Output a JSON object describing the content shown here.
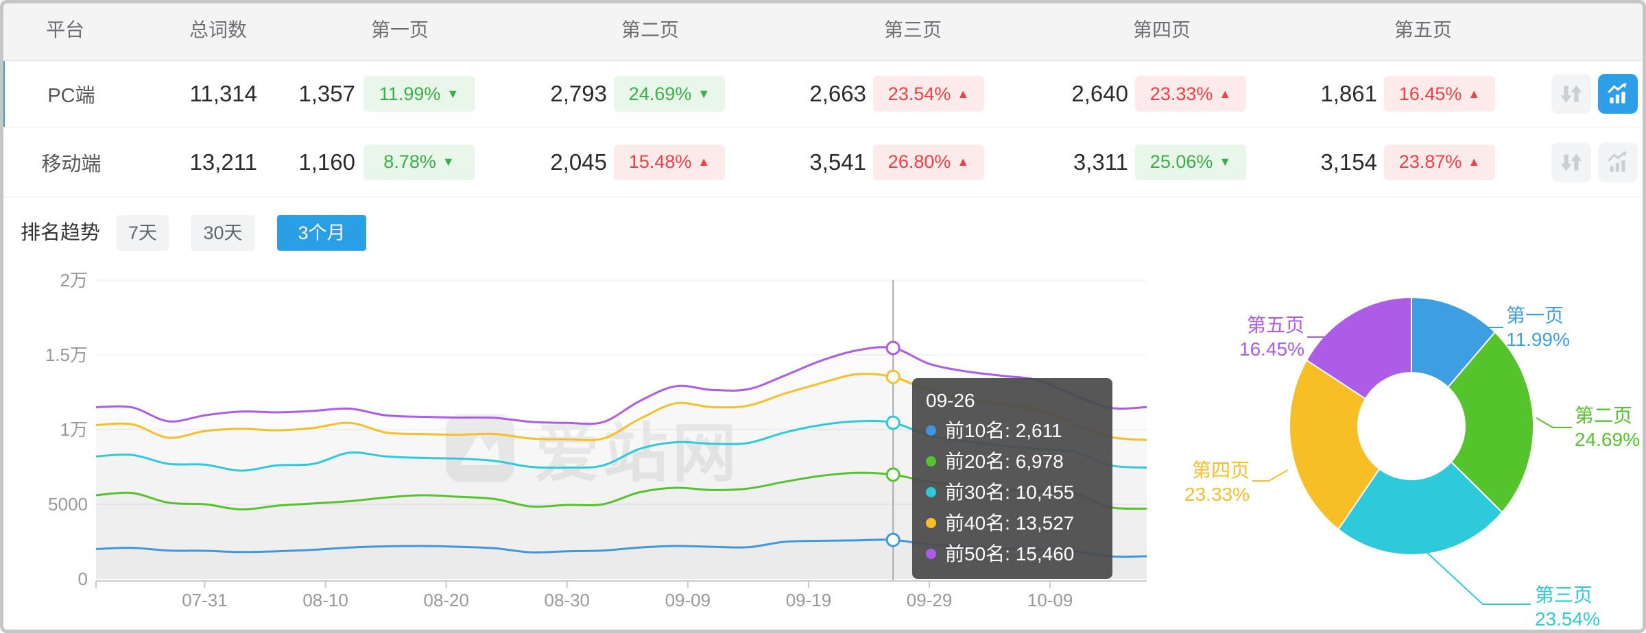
{
  "table": {
    "headers": [
      "平台",
      "总词数",
      "第一页",
      "第二页",
      "第三页",
      "第四页",
      "第五页"
    ],
    "rows": [
      {
        "platform": "PC端",
        "total": "11,314",
        "active": true,
        "pages": [
          {
            "count": "1,357",
            "pct": "11.99%",
            "dir": "down"
          },
          {
            "count": "2,793",
            "pct": "24.69%",
            "dir": "down"
          },
          {
            "count": "2,663",
            "pct": "23.54%",
            "dir": "up"
          },
          {
            "count": "2,640",
            "pct": "23.33%",
            "dir": "up"
          },
          {
            "count": "1,861",
            "pct": "16.45%",
            "dir": "up"
          }
        ]
      },
      {
        "platform": "移动端",
        "total": "13,211",
        "active": false,
        "pages": [
          {
            "count": "1,160",
            "pct": "8.78%",
            "dir": "down"
          },
          {
            "count": "2,045",
            "pct": "15.48%",
            "dir": "up"
          },
          {
            "count": "3,541",
            "pct": "26.80%",
            "dir": "up"
          },
          {
            "count": "3,311",
            "pct": "25.06%",
            "dir": "down"
          },
          {
            "count": "3,154",
            "pct": "23.87%",
            "dir": "up"
          }
        ]
      }
    ]
  },
  "trend": {
    "title": "排名趋势",
    "tabs": [
      {
        "label": "7天",
        "active": false
      },
      {
        "label": "30天",
        "active": false
      },
      {
        "label": "3个月",
        "active": true
      }
    ]
  },
  "watermark": "爱站网",
  "tooltip": {
    "title": "09-26",
    "rows": [
      {
        "name": "前10名",
        "value": "2,611",
        "color": "#3d97e2"
      },
      {
        "name": "前20名",
        "value": "6,978",
        "color": "#54c32c"
      },
      {
        "name": "前30名",
        "value": "10,455",
        "color": "#2ec9db"
      },
      {
        "name": "前40名",
        "value": "13,527",
        "color": "#f8be26"
      },
      {
        "name": "前50名",
        "value": "15,460",
        "color": "#ac5ce6"
      }
    ]
  },
  "chart_data": [
    {
      "type": "line",
      "title": "排名趋势 3个月",
      "x": [
        "07-22",
        "07-25",
        "07-28",
        "07-31",
        "08-03",
        "08-06",
        "08-09",
        "08-12",
        "08-15",
        "08-18",
        "08-21",
        "08-24",
        "08-27",
        "08-30",
        "09-02",
        "09-05",
        "09-08",
        "09-11",
        "09-14",
        "09-17",
        "09-20",
        "09-23",
        "09-26",
        "09-29",
        "10-02",
        "10-05",
        "10-08",
        "10-11",
        "10-14",
        "10-17"
      ],
      "xticks": [
        "07-31",
        "08-10",
        "08-20",
        "08-30",
        "09-09",
        "09-19",
        "09-29",
        "10-09"
      ],
      "ylabels": [
        "0",
        "5000",
        "1万",
        "1.5万",
        "2万"
      ],
      "ylim": [
        0,
        20000
      ],
      "grid": true,
      "marker_date": "09-26",
      "series": [
        {
          "name": "前10名",
          "color": "#3d97e2",
          "values": [
            2000,
            2080,
            1900,
            1880,
            1800,
            1850,
            1950,
            2100,
            2180,
            2200,
            2150,
            2050,
            1780,
            1850,
            1900,
            2100,
            2200,
            2150,
            2120,
            2480,
            2550,
            2580,
            2611,
            2300,
            2150,
            2050,
            1950,
            1850,
            1500,
            1520
          ]
        },
        {
          "name": "前20名",
          "color": "#54c32c",
          "values": [
            5600,
            5750,
            5100,
            5000,
            4650,
            4900,
            5050,
            5200,
            5450,
            5600,
            5500,
            5350,
            4850,
            4950,
            5000,
            5800,
            6100,
            5950,
            6050,
            6500,
            6900,
            7100,
            6978,
            6500,
            6200,
            6000,
            5900,
            5700,
            4800,
            4700
          ]
        },
        {
          "name": "前30名",
          "color": "#2ec9db",
          "values": [
            8200,
            8300,
            7700,
            7650,
            7250,
            7600,
            7700,
            8450,
            8200,
            8100,
            8050,
            7900,
            7500,
            7450,
            7600,
            8700,
            9150,
            9050,
            9100,
            9800,
            10300,
            10550,
            10455,
            9600,
            9200,
            8900,
            8700,
            8500,
            7600,
            7450
          ]
        },
        {
          "name": "前40名",
          "color": "#f8be26",
          "values": [
            10300,
            10350,
            9450,
            9900,
            10050,
            9950,
            10100,
            10450,
            9800,
            9700,
            9650,
            9700,
            9400,
            9350,
            9400,
            10700,
            11750,
            11500,
            11600,
            12400,
            13100,
            13700,
            13527,
            12600,
            12100,
            11700,
            11300,
            10400,
            9500,
            9300
          ]
        },
        {
          "name": "前50名",
          "color": "#ac5ce6",
          "values": [
            11500,
            11480,
            10550,
            10950,
            11200,
            11150,
            11250,
            11400,
            10950,
            10850,
            10800,
            10780,
            10520,
            10450,
            10500,
            11900,
            12900,
            12650,
            12700,
            13600,
            14600,
            15300,
            15460,
            14400,
            13900,
            13600,
            13300,
            12300,
            11450,
            11500
          ]
        }
      ]
    },
    {
      "type": "pie",
      "title": "页面分布",
      "items": [
        {
          "label": "第一页",
          "value_pct": 11.99,
          "color": "#3d9fe2"
        },
        {
          "label": "第二页",
          "value_pct": 24.69,
          "color": "#54c32c"
        },
        {
          "label": "第三页",
          "value_pct": 23.54,
          "color": "#2ec9db"
        },
        {
          "label": "第四页",
          "value_pct": 23.33,
          "color": "#f8be26"
        },
        {
          "label": "第五页",
          "value_pct": 16.45,
          "color": "#ac5ce6"
        }
      ],
      "legend_position": "callout-labels",
      "inner_radius_ratio": 0.43
    }
  ]
}
